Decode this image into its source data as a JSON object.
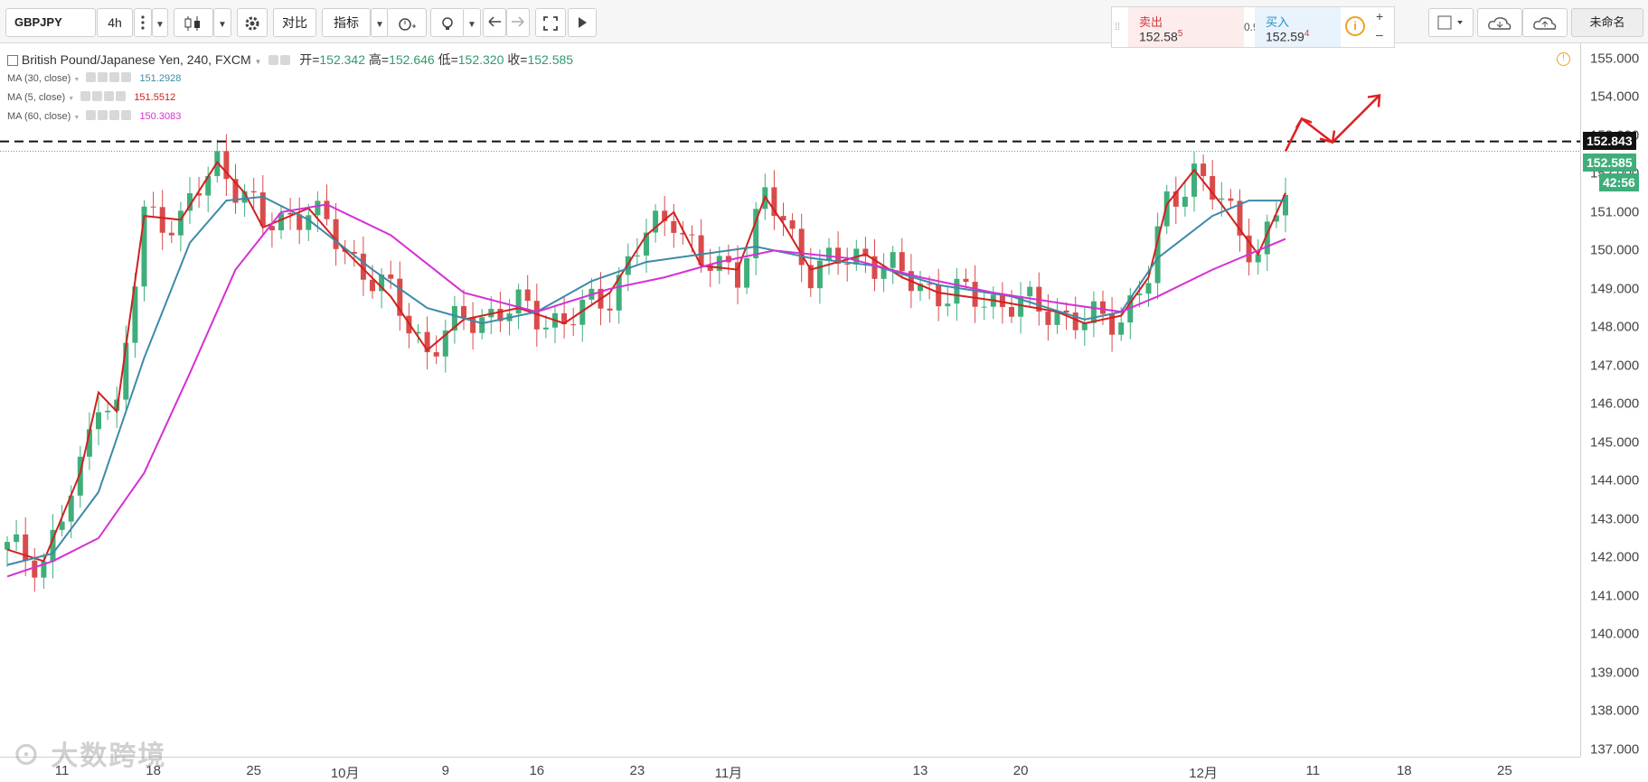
{
  "toolbar": {
    "symbol": "GBPJPY",
    "interval": "4h",
    "compare_label": "对比",
    "indicators_label": "指标",
    "layout_name": "未命名"
  },
  "trade": {
    "sell_label": "卖出",
    "sell_price": "152.58",
    "sell_price_sup": "5",
    "spread": "0.9",
    "buy_label": "买入",
    "buy_price": "152.59",
    "buy_price_sup": "4"
  },
  "legend": {
    "title": "British Pound/Japanese Yen, 240, FXCM",
    "open_label": "开=",
    "open": "152.342",
    "high_label": "高=",
    "high": "152.646",
    "low_label": "低=",
    "low": "152.320",
    "close_label": "收=",
    "close": "152.585",
    "ma30_label": "MA (30, close)",
    "ma30_value": "151.2928",
    "ma5_label": "MA (5, close)",
    "ma5_value": "151.5512",
    "ma60_label": "MA (60, close)",
    "ma60_value": "150.3083"
  },
  "price_axis": {
    "ticks": [
      "155.000",
      "154.000",
      "153.000",
      "152.000",
      "151.000",
      "150.000",
      "149.000",
      "148.000",
      "147.000",
      "146.000",
      "145.000",
      "144.000",
      "143.000",
      "142.000",
      "141.000",
      "140.000",
      "139.000",
      "138.000",
      "137.000"
    ],
    "level_tag": "152.843",
    "price_tag": "152.585",
    "countdown_tag": "42:56"
  },
  "time_axis": {
    "ticks": [
      "11",
      "18",
      "25",
      "10月",
      "9",
      "16",
      "23",
      "11月",
      "13",
      "20",
      "12月",
      "11",
      "18",
      "25"
    ]
  },
  "colors": {
    "up": "#3fae7a",
    "down": "#d94b4b",
    "ma5": "#d32020",
    "ma30": "#3d8aa8",
    "ma60": "#d62fd6",
    "level_line": "#111111",
    "arrow": "#e02020"
  },
  "chart_data": {
    "type": "candlestick",
    "series": [
      {
        "name": "MA (5, close)",
        "points": [
          [
            0,
            142.2
          ],
          [
            4,
            141.9
          ],
          [
            8,
            144.2
          ],
          [
            10,
            146.3
          ],
          [
            12,
            145.8
          ],
          [
            15,
            150.9
          ],
          [
            19,
            150.8
          ],
          [
            23,
            152.3
          ],
          [
            26,
            151.5
          ],
          [
            28,
            150.6
          ],
          [
            33,
            151.1
          ],
          [
            37,
            150.0
          ],
          [
            42,
            148.8
          ],
          [
            46,
            147.4
          ],
          [
            50,
            148.2
          ],
          [
            56,
            148.5
          ],
          [
            61,
            148.1
          ],
          [
            66,
            148.9
          ],
          [
            70,
            150.4
          ],
          [
            73,
            151.0
          ],
          [
            76,
            149.6
          ],
          [
            80,
            149.5
          ],
          [
            83,
            151.4
          ],
          [
            85,
            150.7
          ],
          [
            88,
            149.5
          ],
          [
            94,
            149.9
          ],
          [
            98,
            149.3
          ],
          [
            102,
            148.9
          ],
          [
            108,
            148.7
          ],
          [
            115,
            148.4
          ],
          [
            118,
            148.1
          ],
          [
            122,
            148.3
          ],
          [
            125,
            149.3
          ],
          [
            127,
            151.2
          ],
          [
            130,
            152.1
          ],
          [
            133,
            151.2
          ],
          [
            137,
            149.9
          ],
          [
            140,
            151.5
          ]
        ]
      },
      {
        "name": "MA (30, close)",
        "points": [
          [
            0,
            141.8
          ],
          [
            5,
            142.1
          ],
          [
            10,
            143.7
          ],
          [
            15,
            147.2
          ],
          [
            20,
            150.2
          ],
          [
            24,
            151.3
          ],
          [
            28,
            151.4
          ],
          [
            33,
            150.8
          ],
          [
            40,
            149.5
          ],
          [
            46,
            148.5
          ],
          [
            52,
            148.1
          ],
          [
            58,
            148.4
          ],
          [
            64,
            149.2
          ],
          [
            70,
            149.7
          ],
          [
            76,
            149.9
          ],
          [
            82,
            150.1
          ],
          [
            88,
            149.8
          ],
          [
            95,
            149.6
          ],
          [
            102,
            149.1
          ],
          [
            110,
            148.8
          ],
          [
            118,
            148.2
          ],
          [
            122,
            148.4
          ],
          [
            126,
            149.8
          ],
          [
            132,
            150.9
          ],
          [
            136,
            151.3
          ],
          [
            140,
            151.3
          ]
        ]
      },
      {
        "name": "MA (60, close)",
        "points": [
          [
            0,
            141.5
          ],
          [
            5,
            141.9
          ],
          [
            10,
            142.5
          ],
          [
            15,
            144.2
          ],
          [
            20,
            146.8
          ],
          [
            25,
            149.5
          ],
          [
            30,
            151.0
          ],
          [
            35,
            151.2
          ],
          [
            42,
            150.4
          ],
          [
            50,
            148.9
          ],
          [
            58,
            148.4
          ],
          [
            66,
            149.0
          ],
          [
            72,
            149.3
          ],
          [
            78,
            149.7
          ],
          [
            84,
            150.0
          ],
          [
            92,
            149.8
          ],
          [
            100,
            149.3
          ],
          [
            108,
            148.9
          ],
          [
            116,
            148.6
          ],
          [
            122,
            148.4
          ],
          [
            126,
            148.8
          ],
          [
            132,
            149.5
          ],
          [
            138,
            150.1
          ],
          [
            140,
            150.3
          ]
        ]
      }
    ],
    "x_ticks": [
      "11",
      "18",
      "25",
      "10月",
      "9",
      "16",
      "23",
      "11月",
      "13",
      "20",
      "12月",
      "11",
      "18",
      "25"
    ],
    "y_range": [
      136.8,
      155.4
    ],
    "resistance_level": 152.843,
    "last_price": 152.585
  }
}
